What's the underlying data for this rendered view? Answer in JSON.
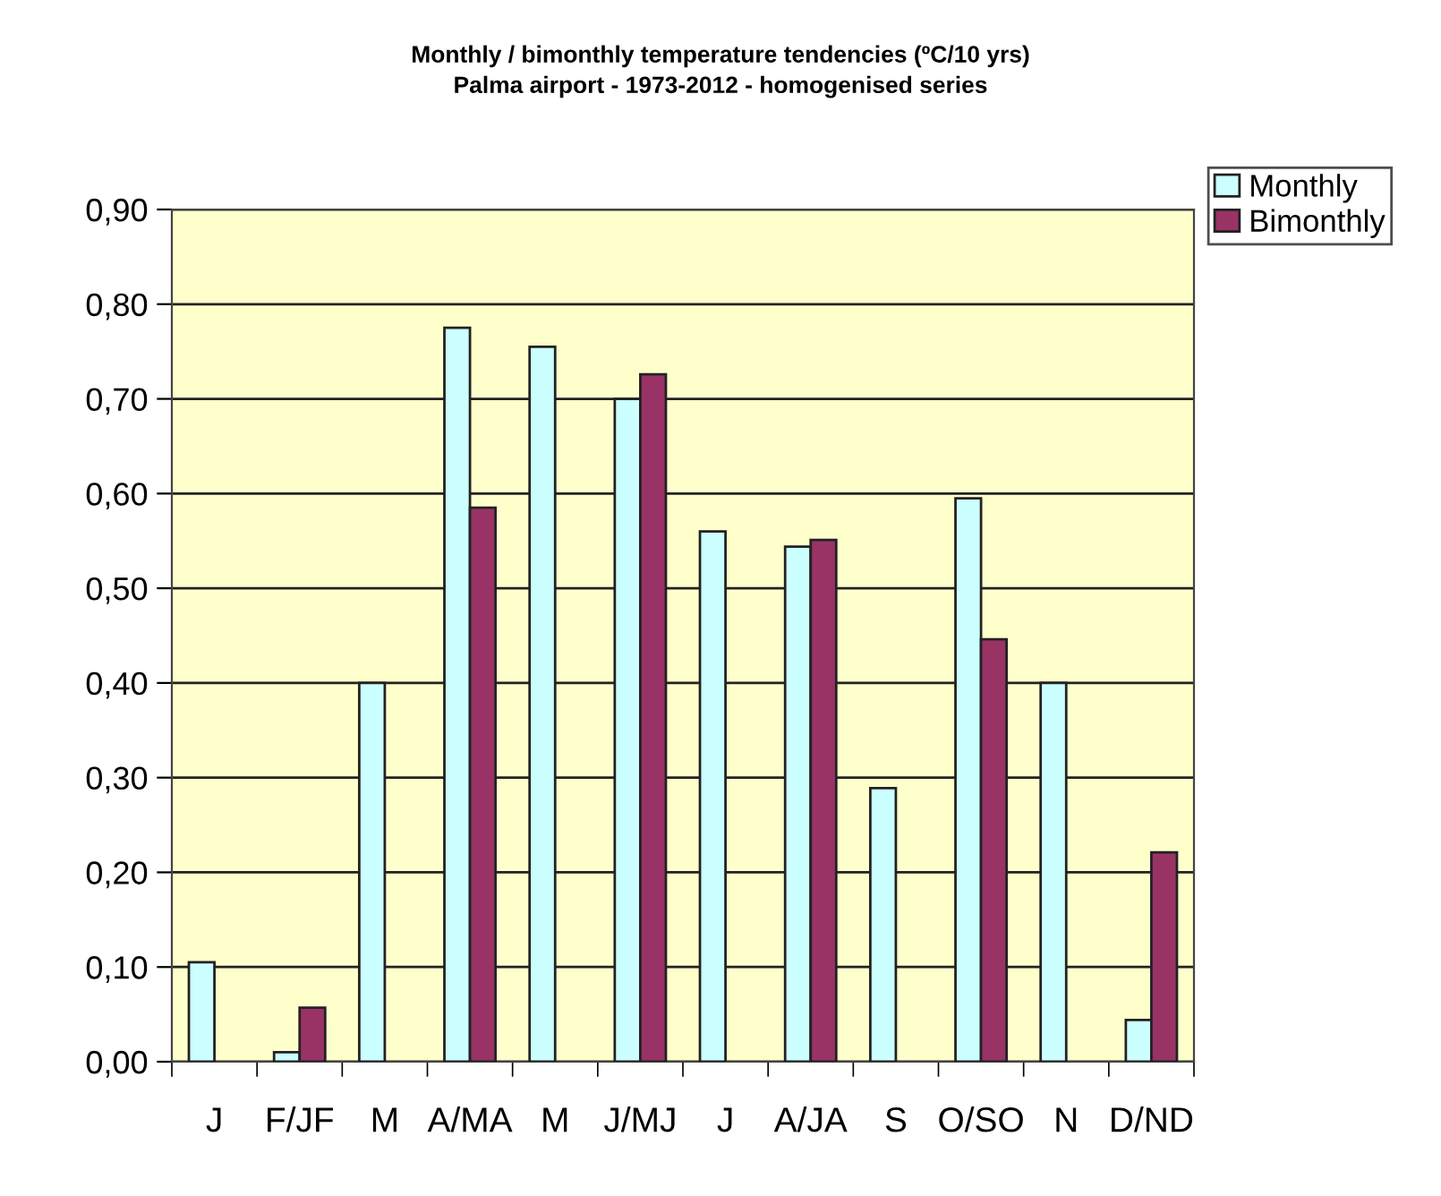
{
  "chart_data": {
    "type": "bar",
    "title": "Monthly / bimonthly temperature tendencies (ºC/10 yrs)\nPalma airport - 1973-2012 - homogenised series",
    "categories": [
      "J",
      "F/JF",
      "M",
      "A/MA",
      "M",
      "J/MJ",
      "J",
      "A/JA",
      "S",
      "O/SO",
      "N",
      "D/ND"
    ],
    "series": [
      {
        "name": "Monthly",
        "color": "#ccffff",
        "values": [
          0.105,
          0.01,
          0.4,
          0.775,
          0.755,
          0.7,
          0.56,
          0.544,
          0.289,
          0.595,
          0.4,
          0.044
        ]
      },
      {
        "name": "Bimonthly",
        "color": "#993366",
        "values": [
          null,
          0.057,
          null,
          0.585,
          null,
          0.726,
          null,
          0.551,
          null,
          0.446,
          null,
          0.221
        ]
      }
    ],
    "ylim": [
      0,
      0.9
    ],
    "yticks": [
      {
        "value": 0,
        "label": "0,00"
      },
      {
        "value": 0.1,
        "label": "0,10"
      },
      {
        "value": 0.2,
        "label": "0,20"
      },
      {
        "value": 0.3,
        "label": "0,30"
      },
      {
        "value": 0.4,
        "label": "0,40"
      },
      {
        "value": 0.5,
        "label": "0,50"
      },
      {
        "value": 0.6,
        "label": "0,60"
      },
      {
        "value": 0.7,
        "label": "0,70"
      },
      {
        "value": 0.8,
        "label": "0,80"
      },
      {
        "value": 0.9,
        "label": "0,90"
      }
    ],
    "grid": "y",
    "legend": "top right"
  }
}
